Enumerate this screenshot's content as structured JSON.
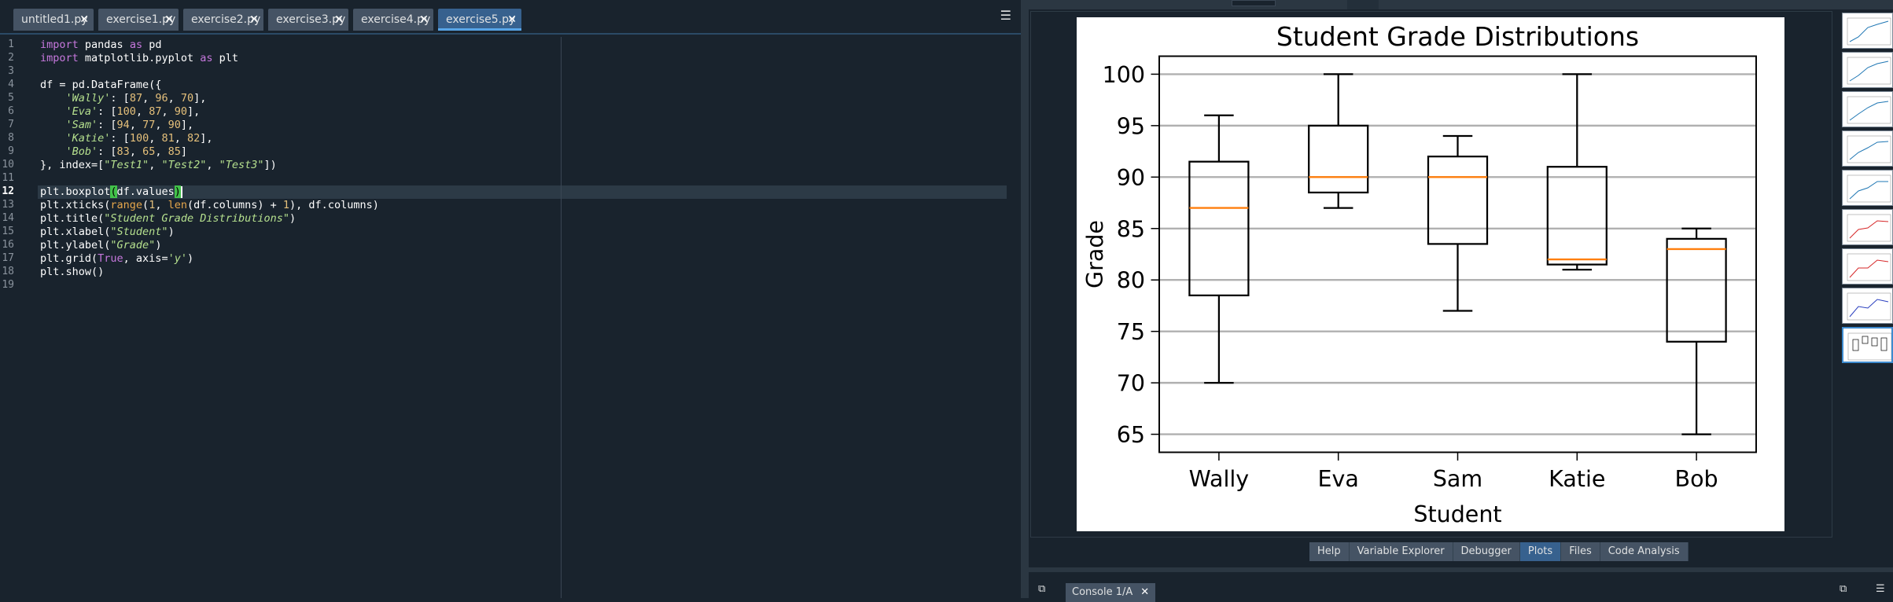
{
  "editor": {
    "tabs": [
      {
        "label": "untitled1.py",
        "close": "✕",
        "active": false
      },
      {
        "label": "exercise1.py",
        "close": "✕",
        "active": false
      },
      {
        "label": "exercise2.py",
        "close": "✕",
        "active": false
      },
      {
        "label": "exercise3.py",
        "close": "✕",
        "active": false
      },
      {
        "label": "exercise4.py",
        "close": "✕",
        "active": false
      },
      {
        "label": "exercise5.py",
        "close": "✕",
        "active": true
      }
    ],
    "options_icon": "hamburger-menu-icon",
    "line_numbers": [
      "1",
      "2",
      "3",
      "4",
      "5",
      "6",
      "7",
      "8",
      "9",
      "10",
      "11",
      "12",
      "13",
      "14",
      "15",
      "16",
      "17",
      "18",
      "19"
    ],
    "current_line": "12",
    "code": [
      "import pandas as pd",
      "import matplotlib.pyplot as plt",
      "",
      "df = pd.DataFrame({",
      "    'Wally': [87, 96, 70],",
      "    'Eva': [100, 87, 90],",
      "    'Sam': [94, 77, 90],",
      "    'Katie': [100, 81, 82],",
      "    'Bob': [83, 65, 85]",
      "}, index=[\"Test1\", \"Test2\", \"Test3\"])",
      "",
      "plt.boxplot(df.values)",
      "plt.xticks(range(1, len(df.columns) + 1), df.columns)",
      "plt.title(\"Student Grade Distributions\")",
      "plt.xlabel(\"Student\")",
      "plt.ylabel(\"Grade\")",
      "plt.grid(True, axis='y')",
      "plt.show()",
      ""
    ]
  },
  "plots_pane": {
    "tabs": [
      {
        "label": "Help",
        "active": false
      },
      {
        "label": "Variable Explorer",
        "active": false
      },
      {
        "label": "Debugger",
        "active": false
      },
      {
        "label": "Plots",
        "active": true
      },
      {
        "label": "Files",
        "active": false
      },
      {
        "label": "Code Analysis",
        "active": false
      }
    ],
    "thumbnail_count": 9,
    "selected_thumbnail": 8
  },
  "console": {
    "tab_label": "Console 1/A",
    "close": "✕",
    "left_icon": "new-window-icon",
    "right_icons": [
      "copy-icon",
      "hamburger-menu-icon"
    ]
  },
  "chart_data": {
    "type": "box",
    "title": "Student Grade Distributions",
    "xlabel": "Student",
    "ylabel": "Grade",
    "categories": [
      "Wally",
      "Eva",
      "Sam",
      "Katie",
      "Bob"
    ],
    "raw_values": {
      "Wally": [
        87,
        96,
        70
      ],
      "Eva": [
        100,
        87,
        90
      ],
      "Sam": [
        94,
        77,
        90
      ],
      "Katie": [
        100,
        81,
        82
      ],
      "Bob": [
        83,
        65,
        85
      ]
    },
    "boxes": [
      {
        "name": "Wally",
        "min": 70,
        "q1": 78.5,
        "median": 87,
        "q3": 91.5,
        "max": 96
      },
      {
        "name": "Eva",
        "min": 87,
        "q1": 88.5,
        "median": 90,
        "q3": 95,
        "max": 100
      },
      {
        "name": "Sam",
        "min": 77,
        "q1": 83.5,
        "median": 90,
        "q3": 92,
        "max": 94
      },
      {
        "name": "Katie",
        "min": 81,
        "q1": 81.5,
        "median": 82,
        "q3": 91,
        "max": 100
      },
      {
        "name": "Bob",
        "min": 65,
        "q1": 74,
        "median": 83,
        "q3": 84,
        "max": 85
      }
    ],
    "ylim": [
      63.25,
      101.75
    ],
    "yticks": [
      65,
      70,
      75,
      80,
      85,
      90,
      95,
      100
    ],
    "grid": "y",
    "colors": {
      "box": "#000000",
      "median": "#ff7f0e",
      "grid": "#b0b0b0"
    }
  }
}
